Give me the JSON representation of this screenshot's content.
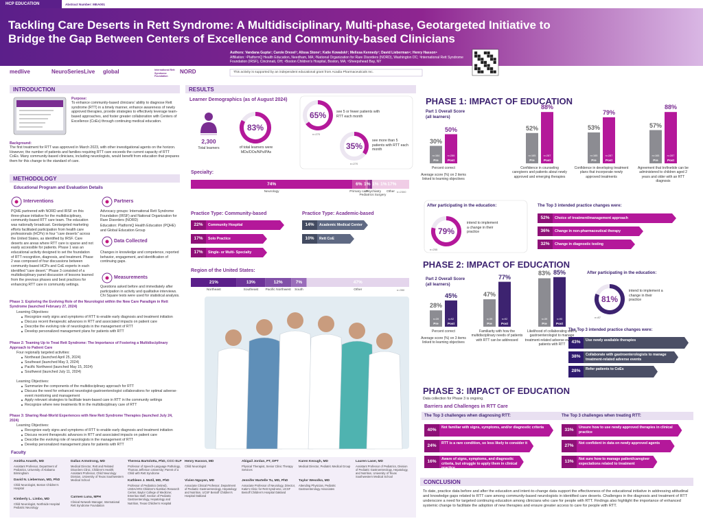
{
  "header": {
    "tag": "HCP EDUCATION",
    "abstract": "Abstract Number: MEA001",
    "title": "Tackling Care Deserts in Rett Syndrome: A Multidisciplinary, Multi-phase, Geotargeted Initiative to Bridge the Gap Between Centers of Excellence and Community-based Clinicians",
    "authors": "Authors: Vandana Gupta¹; Carole Drexel¹; Alissa Stone¹; Katie Kowalski¹; Melissa Kennedy¹; David Lieberman⁴; Henry Hasson⁵",
    "affiliation": "Affiliation: ¹PlatformQ Health Education, Needham, MA; ²National Organization for Rare Disorders (NORD), Washington DC; ³International Rett Syndrome Foundation (IRSF), Cincinnati, OH; ⁴Boston Children's Hospital, Boston, MA; ⁵Sheepshead Bay, NY",
    "support": "This activity is supported by an independent educational grant from Acadia Pharmaceuticals Inc."
  },
  "logos": [
    "medlive",
    "NeuroSeriesLive",
    "global",
    "International Rett Syndrome Foundation",
    "NORD"
  ],
  "introduction": {
    "heading": "INTRODUCTION",
    "purpose_label": "Purpose:",
    "purpose": "To enhance community-based clinicians' ability to diagnose Rett syndrome (RTT) in a timely manner, enhance awareness of newly approved therapies, provide strategies to effectively leverage team-based approaches, and foster greater collaboration with Centers of Excellence (CoEs) through continuing medical education.",
    "background_label": "Background:",
    "background": "The first treatment for RTT was approved in March 2023, with other investigational agents on the horizon. However, the number of patients and families requiring RTT care exceeds the current capacity of RTT CoEs. Many community-based clinicians, including neurologists, would benefit from education that prepares them for this change to the standard of care."
  },
  "methodology": {
    "heading": "METHODOLOGY",
    "subheading": "Educational Program and Evaluation Details",
    "interventions_title": "Interventions",
    "interventions": "PQHE partnered with NORD and IRSF on this three-phase initiative for the multidisciplinary, community-based RTT care team. The education was nationally broadcast. Geotargeted marketing efforts facilitated participation from health care professionals (HCPs) in four \"care deserts\" across the United States, as identified by IRSF. Care deserts are areas where RTT care is sparse and not easily accessible for patients. Phase 1 was an educational activity designed to set the foundation of RTT recognition, diagnosis, and treatment. Phase 2 was composed of four discussions between community-based HCPs and CoE experts in each identified \"care desert.\" Phase 3 consisted of a multidisciplinary panel discussion of lessons learned from the previous phases and best practices for enhancing RTT care in community settings.",
    "partners_title": "Partners",
    "partners": [
      "Advocacy groups: International Rett Syndrome Foundation (IRSF) and National Organization for Rare Disorders (NORD)",
      "Education: PlatformQ Health Education (PQHE) and Global Education Group"
    ],
    "data_title": "Data Collected",
    "data": "Changes in knowledge and competence, reported behavior, engagement, and identification of continuing gaps.",
    "measurements_title": "Measurements",
    "measurements": "Questions asked before and immediately after participation in activity and qualitative interviews. Chi Square tests were used for statistical analysis.",
    "objectives_label": "Learning Objectives:",
    "phase1_title": "Phase 1: Exploring the Evolving Role of the Neurologist within the New Care Paradigm in Rett Syndrome (launched February 27, 2024)",
    "phase1_objectives": [
      "Recognize early signs and symptoms of RTT to enable early diagnosis and treatment initiation",
      "Discuss recent therapeutic advances in RTT and associated impacts on patient care",
      "Describe the evolving role of neurologists in the management of RTT",
      "Develop personalized management plans for patients with RTT"
    ],
    "phase2_title": "Phase 2: Teaming Up to Treat Rett Syndrome: The Importance of Fostering a Multidisciplinary Approach to Patient Care",
    "phase2_regions_label": "Four regionally targeted activities:",
    "phase2_regions": [
      "Northeast (launched April 25, 2024)",
      "Southeast (launched May 3, 2024)",
      "Pacific Northwest (launched May 15, 2024)",
      "Southwest (launched July 11, 2024)"
    ],
    "phase2_objectives": [
      "Summarize the components of the multidisciplinary approach for RTT",
      "Discuss the need for enhanced neurologist-gastroenterologist collaborations for optimal adverse-event monitoring and management",
      "Apply relevant strategies to facilitate team-based care in RTT in the community settings",
      "Recognize where new treatments fit in the multidisciplinary care of RTT"
    ],
    "phase3_title": "Phase 3: Sharing Real-World Experiences with New Rett Syndrome Therapies (launched July 24, 2024)",
    "phase3_objectives": [
      "Recognize early signs and symptoms of RTT to enable early diagnosis and treatment initiation",
      "Discuss recent therapeutic advances in RTT and associated impacts on patient care",
      "Describe the evolving role of neurologists in the management of RTT",
      "Develop personalized management plans for patients with RTT"
    ]
  },
  "faculty": {
    "heading": "Faculty",
    "members": [
      {
        "name": "Amitha Ananth, MD",
        "role": "Assistant Professor, Department of Pediatrics, University of Alabama Birmingham"
      },
      {
        "name": "David N. Lieberman, MD, PhD",
        "role": "Child Neurologist, Boston Children's Hospital"
      },
      {
        "name": "Kimberly L. Limbo, MD",
        "role": "Child Neurologist, Northside Hospital Pediatric Neurology"
      },
      {
        "name": "Dallas Armstrong, MD",
        "role": "Medical Director, Rett and Related Disorders Clinic, Children's Health; Assistant Professor, Child Neurology Division, University of Texas Southwestern Medical School"
      },
      {
        "name": "Carmen Luna, MPH",
        "role": "Clinical Network Manager, International Rett Syndrome Foundation"
      },
      {
        "name": "Theresa Bartolotta, PhD, CCC-SLP",
        "role": "Professor of Speech-Language Pathology, Thomas Jefferson University; Parent of a Child with Rett Syndrome"
      },
      {
        "name": "Kathleen J. Motil, MD, PhD",
        "role": "Professor of Pediatrics (retired), USDA/ARS Children's Nutrition Research Center, Baylor College of Medicine; Emeritus Staff, Section of Pediatric Gastroenterology, Hepatology and Nutrition, Texas Children's Hospital"
      },
      {
        "name": "Henry Hasson, MD",
        "role": "Child Neurologist"
      },
      {
        "name": "Vivien Nguyen, MD",
        "role": "Associate Clinical Professor, Department of Pediatric Gastroenterology, Hepatology and Nutrition, UCSF Benioff Children's Hospital Oakland"
      },
      {
        "name": "Abigail Jordan, PT, DPT",
        "role": "Physical Therapist, Senior Clinic Therapy Services"
      },
      {
        "name": "Jennifer Martelle Tu, MD, PhD",
        "role": "Associate Professor of Neurology, Director, Katie's Clinic for Rett Syndrome, UCSF Benioff Children's Hospital Oakland"
      },
      {
        "name": "Karen Keough, MD",
        "role": "Medical Director, Pediatric Medical Group"
      },
      {
        "name": "Taylor Wesolko, MD",
        "role": "Attending Physician, Pediatric Gastroenterology Associates"
      },
      {
        "name": "Lauren Laser, MD",
        "role": "Assistant Professor of Pediatrics, Division of Pediatric Gastroenterology, Hepatology, and Nutrition, University of Texas Southwestern Medical School"
      }
    ]
  },
  "results": {
    "heading": "RESULTS",
    "demographics_title": "Learner Demographics (as of August 2024)",
    "total": {
      "value": 2300,
      "label": "2,300",
      "text": "Total learners"
    },
    "clinicians": {
      "value": 83,
      "label": "83%",
      "text": "of total learners were MDs/DOs/NPs/PAs"
    },
    "few_patients": {
      "value": 65,
      "label": "65%",
      "text": "see 5 or fewer patients with RTT each month",
      "n": "n=270"
    },
    "more_patients": {
      "value": 35,
      "label": "35%",
      "text": "see more than 5 patients with RTT each month",
      "n": "n=270"
    },
    "specialty": {
      "title": "Specialty:",
      "n": "n=2300",
      "items": [
        {
          "name": "Neurology",
          "value": 74,
          "label": "74%"
        },
        {
          "name": "Primary care",
          "value": 6,
          "label": "6%"
        },
        {
          "name": "Pediatrics",
          "value": 1,
          "label": "1%"
        },
        {
          "name": "Psychiatry",
          "value": 1,
          "label": "1%"
        },
        {
          "name": "Surgery",
          "value": 1,
          "label": "1%"
        },
        {
          "name": "Other",
          "value": 17,
          "label": "17%"
        }
      ]
    },
    "community": {
      "title": "Practice Type: Community-based",
      "items": [
        {
          "text": "Community Hospital",
          "value": 22,
          "label": "22%"
        },
        {
          "text": "Solo Practice",
          "value": 17,
          "label": "17%"
        },
        {
          "text": "Single- or Multi- Specialty",
          "value": 17,
          "label": "17%"
        }
      ]
    },
    "academic": {
      "title": "Practice Type: Academic-based",
      "items": [
        {
          "text": "Academic Medical Center",
          "value": 14,
          "label": "14%"
        },
        {
          "text": "Rett CoE",
          "value": 10,
          "label": "10%"
        }
      ]
    },
    "region": {
      "title": "Region of the United States:",
      "n": "n=350",
      "items": [
        {
          "name": "Northeast",
          "value": 21,
          "label": "21%"
        },
        {
          "name": "Southeast",
          "value": 13,
          "label": "13%"
        },
        {
          "name": "Pacific Northwest",
          "value": 12,
          "label": "12%"
        },
        {
          "name": "South",
          "value": 7,
          "label": "7%"
        },
        {
          "name": "Other",
          "value": 47,
          "label": "47%"
        }
      ]
    }
  },
  "phase1": {
    "heading": "PHASE 1: IMPACT OF EDUCATION",
    "score_title": "Part 1 Overall Score (all learners)",
    "y_label": "Percent correct",
    "groups": [
      {
        "caption": "Average score (%) on 2 items linked to learning objectives",
        "bars": [
          {
            "phase": "Pre",
            "value": 30,
            "label": "30%",
            "n": "n=164"
          },
          {
            "phase": "Post",
            "value": 50,
            "label": "50%",
            "n": "n=286"
          }
        ]
      },
      {
        "caption": "Confidence in counseling caregivers and patients about newly approved and emerging therapies",
        "bars": [
          {
            "phase": "Pre",
            "value": 52,
            "label": "52%",
            "n": "n=165"
          },
          {
            "phase": "Post",
            "value": 88,
            "label": "88%",
            "n": "n=287"
          }
        ]
      },
      {
        "caption": "Confidence in developing treatment plans that incorporate newly approved treatments",
        "bars": [
          {
            "phase": "Pre",
            "value": 53,
            "label": "53%",
            "n": "n=165"
          },
          {
            "phase": "Post",
            "value": 79,
            "label": "79%",
            "n": "n=287"
          }
        ]
      },
      {
        "caption": "Agreement that trofinetide can be administered to children aged 2 years and older with an RTT diagnosis",
        "bars": [
          {
            "phase": "Pre",
            "value": 57,
            "label": "57%",
            "n": "n=165"
          },
          {
            "phase": "Post",
            "value": 88,
            "label": "88%",
            "n": "n=287"
          }
        ]
      }
    ],
    "intent_title": "After participating in the education:",
    "intent": {
      "value": 79,
      "label": "79%",
      "text": "intend to implement a change in their practice",
      "n": "n=255"
    },
    "top3_title": "The Top 3 intended practice changes were:",
    "top3": [
      {
        "value": 52,
        "label": "52%",
        "text": "Choice of treatment/management approach"
      },
      {
        "value": 36,
        "label": "36%",
        "text": "Change in non-pharmaceutical therapy"
      },
      {
        "value": 32,
        "label": "32%",
        "text": "Change in diagnostic testing"
      }
    ]
  },
  "phase2": {
    "heading": "PHASE 2: IMPACT OF EDUCATION",
    "score_title": "Part 2 Overall Score (all learners)",
    "y_label": "Percent correct",
    "groups": [
      {
        "caption": "Average score (%) on 3 items linked to learning objectives",
        "bars": [
          {
            "phase": "Pre",
            "value": 28,
            "label": "28%",
            "n": "n=39"
          },
          {
            "phase": "Post",
            "value": 45,
            "label": "45%",
            "n": "n=92"
          }
        ]
      },
      {
        "caption": "Familiarity with how the multidisciplinary needs of patients with RTT can be addressed",
        "bars": [
          {
            "phase": "Pre",
            "value": 47,
            "label": "47%",
            "n": "n=39"
          },
          {
            "phase": "Post",
            "value": 77,
            "label": "77%",
            "n": "n=92"
          }
        ]
      },
      {
        "caption": "Likelihood of collaborating with a gastroenterologist to manage treatment-related adverse events in patients with RTT",
        "bars": [
          {
            "phase": "Pre",
            "value": 83,
            "label": "83%",
            "n": "n=39"
          },
          {
            "phase": "Post",
            "value": 85,
            "label": "85%",
            "n": "n=90"
          }
        ]
      }
    ],
    "intent_title": "After participating in the education:",
    "intent": {
      "value": 81,
      "label": "81%",
      "text": "intend to implement a change in their practice",
      "n": "n=87"
    },
    "top3_title": "The Top 3 intended practice changes were:",
    "top3": [
      {
        "value": 43,
        "label": "43%",
        "text": "Use newly available therapies"
      },
      {
        "value": 38,
        "label": "38%",
        "text": "Collaborate with gastroenterologists to manage treatment-related adverse events"
      },
      {
        "value": 28,
        "label": "28%",
        "text": "Refer patients to CoEs"
      }
    ]
  },
  "phase3": {
    "heading": "PHASE 3: IMPACT OF EDUCATION",
    "note": "Data collection for Phase 3 is ongoing.",
    "barriers_title": "Barriers and Challenges in RTT Care",
    "diagnosing_title": "The Top 3 challenges when diagnosing RTT:",
    "diagnosing": [
      {
        "value": 40,
        "label": "40%",
        "text": "Not familiar with signs, symptoms, and/or diagnostic criteria"
      },
      {
        "value": 24,
        "label": "24%",
        "text": "RTT is a rare condition, so less likely to consider it"
      },
      {
        "value": 16,
        "label": "16%",
        "text": "Aware of signs, symptoms, and diagnostic criteria, but struggle to apply them in clinical practice"
      }
    ],
    "treating_title": "The Top 3 challenges when treating RTT:",
    "treating": [
      {
        "value": 33,
        "label": "33%",
        "text": "Unsure how to use newly approved therapies in clinical practice"
      },
      {
        "value": 27,
        "label": "27%",
        "text": "Not confident in data on newly approved agents"
      },
      {
        "value": 13,
        "label": "13%",
        "text": "Not sure how to manage patient/caregiver expectations related to treatment"
      }
    ]
  },
  "conclusion": {
    "heading": "CONCLUSION",
    "text": "To date, practice data before and after the education and intent-to-change data support the effectiveness of the educational initiative in addressing attitudinal and knowledge gaps related to RTT care among community-based neurologists in identified care deserts. Challenges in the diagnosis and treatment of RTT underscore a need for targeted continuing education among clinicians who care for people with RTT. Findings also highlight the importance of enhanced systemic change to facilitate the adoption of new therapies and ensure greater access to care for people with RTT."
  }
}
